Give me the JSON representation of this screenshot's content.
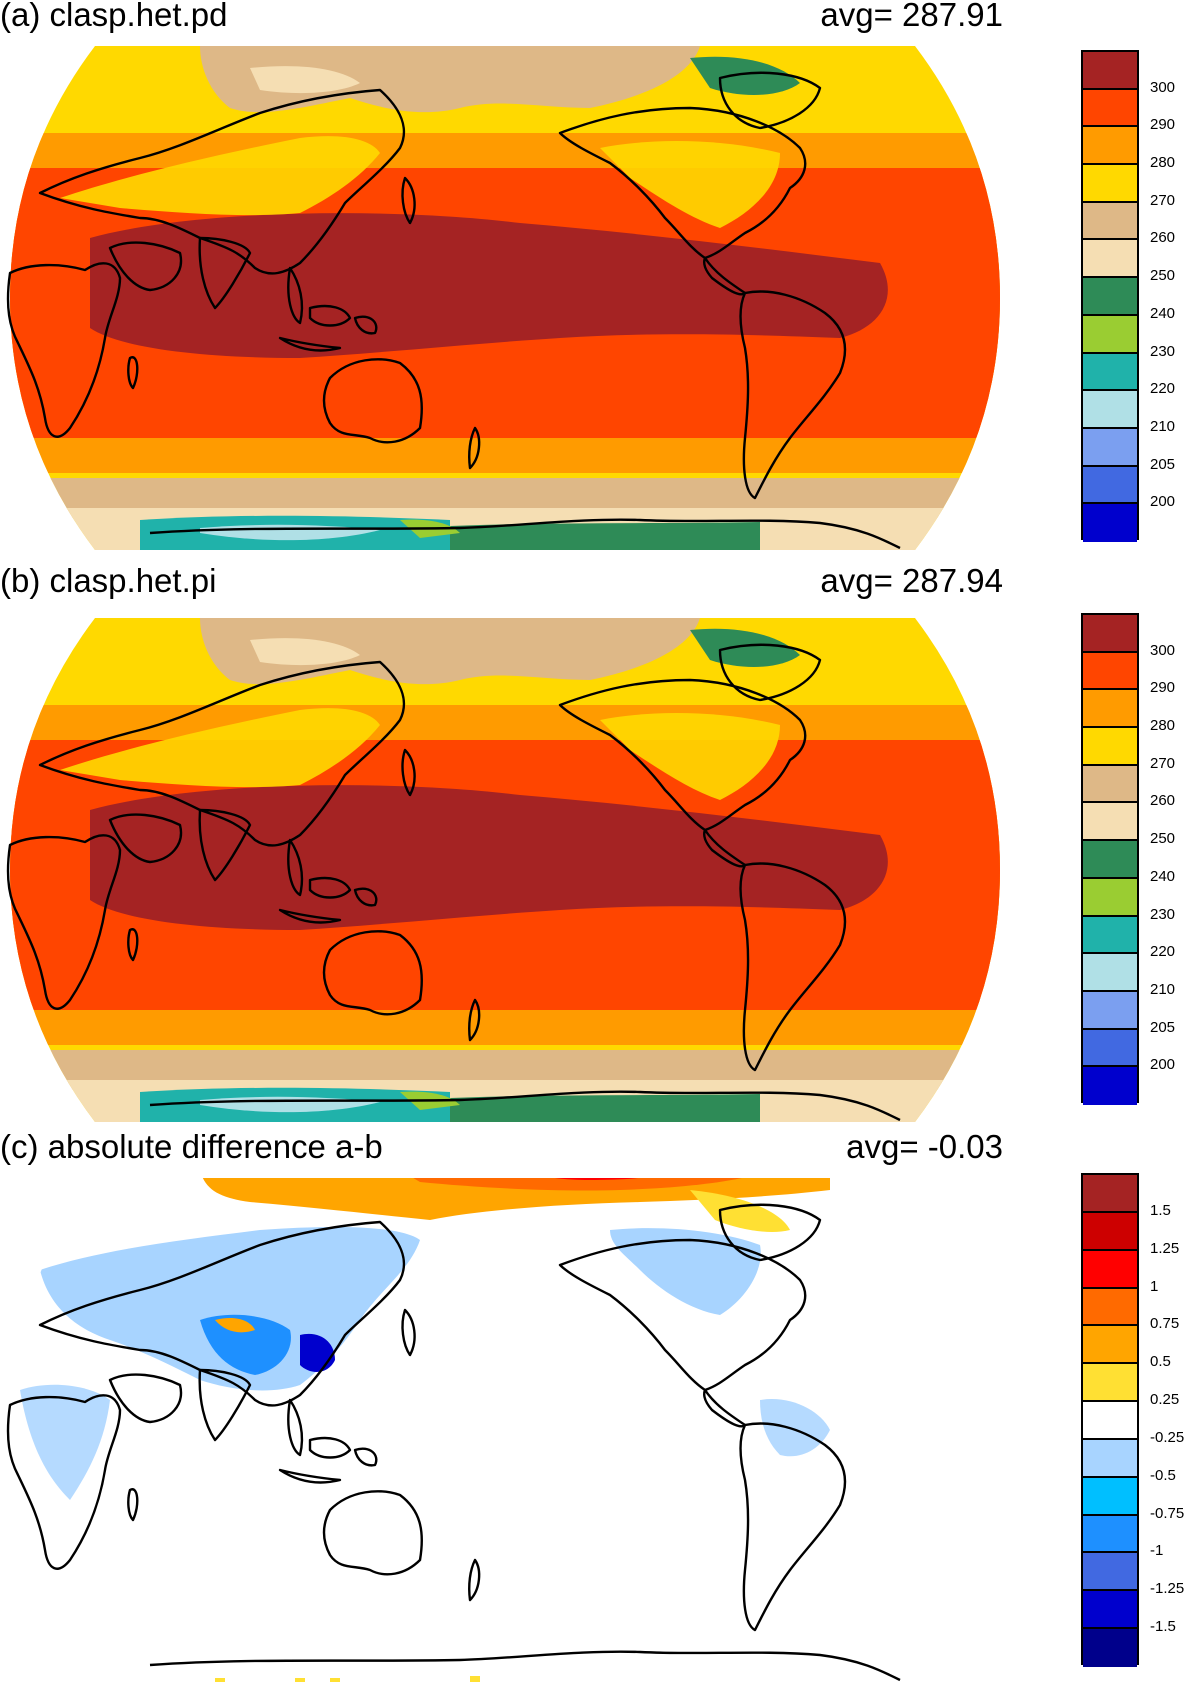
{
  "panels": [
    {
      "title": "(a) clasp.het.pd",
      "avg": "avg=  287.91",
      "colorbar": {
        "colors": [
          "#a52323",
          "#ff4500",
          "#ff9b00",
          "#ffd900",
          "#deb887",
          "#f5deb3",
          "#2e8b57",
          "#9acd32",
          "#20b2aa",
          "#b0e0e6",
          "#7b9ff0",
          "#4169e1",
          "#0000cd"
        ],
        "labels": [
          "300",
          "290",
          "280",
          "270",
          "260",
          "250",
          "240",
          "230",
          "220",
          "210",
          "205",
          "200"
        ]
      },
      "bands": [
        {
          "value": "270",
          "color": "#ffd900"
        },
        {
          "value": "280",
          "color": "#ff9b00"
        },
        {
          "value": "290",
          "color": "#ff4500"
        },
        {
          "value": "300",
          "color": "#a52323"
        },
        {
          "value": "260",
          "color": "#deb887"
        },
        {
          "value": "240",
          "color": "#2e8b57"
        },
        {
          "value": "220",
          "color": "#20b2aa"
        },
        {
          "value": "210",
          "color": "#b0e0e6"
        }
      ]
    },
    {
      "title": "(b) clasp.het.pi",
      "avg": "avg=  287.94",
      "colorbar": {
        "colors": [
          "#a52323",
          "#ff4500",
          "#ff9b00",
          "#ffd900",
          "#deb887",
          "#f5deb3",
          "#2e8b57",
          "#9acd32",
          "#20b2aa",
          "#b0e0e6",
          "#7b9ff0",
          "#4169e1",
          "#0000cd"
        ],
        "labels": [
          "300",
          "290",
          "280",
          "270",
          "260",
          "250",
          "240",
          "230",
          "220",
          "210",
          "205",
          "200"
        ]
      }
    },
    {
      "title": "(c) absolute difference a-b",
      "avg": "avg=   -0.03",
      "colorbar": {
        "colors": [
          "#a52323",
          "#cd0000",
          "#ff0000",
          "#ff6a00",
          "#ffa500",
          "#ffe033",
          "#ffffff",
          "#a8d4ff",
          "#00bfff",
          "#1e90ff",
          "#4169e1",
          "#0000cd",
          "#00008b"
        ],
        "labels": [
          "1.5",
          "1.25",
          "1",
          "0.75",
          "0.5",
          "0.25",
          "-0.25",
          "-0.5",
          "-0.75",
          "-1",
          "-1.25",
          "-1.5"
        ]
      }
    }
  ],
  "colors": {
    "coast": "#000000",
    "diff_neg_light": "#a8d4ff",
    "diff_neg_dark": "#0000cd",
    "diff_pos": "#ff4500"
  }
}
